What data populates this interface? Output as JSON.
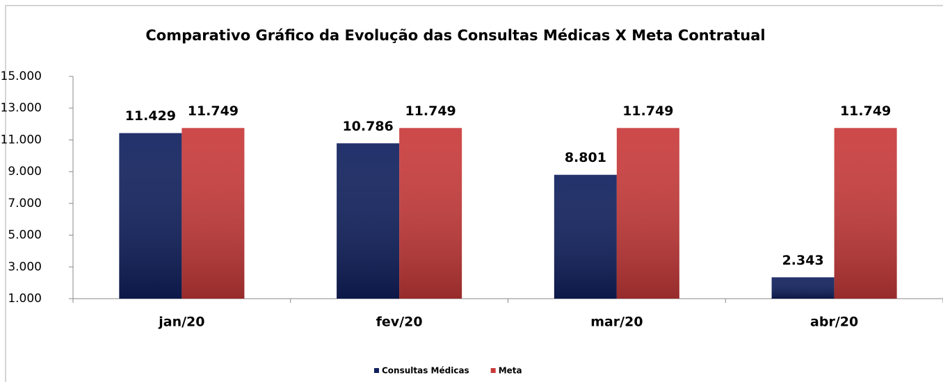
{
  "chart_data": {
    "type": "bar",
    "title": "Comparativo Gráfico da Evolução das Consultas Médicas X Meta Contratual",
    "categories": [
      "jan/20",
      "fev/20",
      "mar/20",
      "abr/20"
    ],
    "series": [
      {
        "name": "Consultas Médicas",
        "color": "#10205e",
        "values": [
          11429,
          10786,
          8801,
          2343
        ],
        "value_labels": [
          "11.429",
          "10.786",
          "8.801",
          "2.343"
        ]
      },
      {
        "name": "Meta",
        "color": "#c93a3a",
        "values": [
          11749,
          11749,
          11749,
          11749
        ],
        "value_labels": [
          "11.749",
          "11.749",
          "11.749",
          "11.749"
        ]
      }
    ],
    "ylim": [
      1000,
      15000
    ],
    "yticks": [
      {
        "value": 1000,
        "label": "1.000"
      },
      {
        "value": 3000,
        "label": "3.000"
      },
      {
        "value": 5000,
        "label": "5.000"
      },
      {
        "value": 7000,
        "label": "7.000"
      },
      {
        "value": 9000,
        "label": "9.000"
      },
      {
        "value": 11000,
        "label": "11.000"
      },
      {
        "value": 13000,
        "label": "13.000"
      },
      {
        "value": 15000,
        "label": "15.000"
      }
    ],
    "grid": false,
    "legend": "bottom"
  }
}
